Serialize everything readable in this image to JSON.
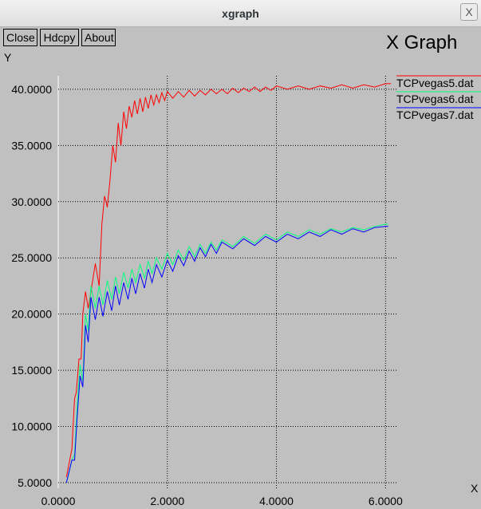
{
  "window": {
    "title": "xgraph",
    "close_glyph": "X"
  },
  "buttons": {
    "close": "Close",
    "hdcpy": "Hdcpy",
    "about": "About"
  },
  "graph_title": "X Graph",
  "y_unit": "Y",
  "x_unit": "X",
  "colors": {
    "background": "#c0c0c0",
    "grid": "#000000",
    "axis": "#ffffff"
  },
  "chart_data": {
    "type": "line",
    "title": "X Graph",
    "xlabel": "X",
    "ylabel": "Y",
    "xlim": [
      0,
      6.2
    ],
    "ylim": [
      4.5,
      41.2
    ],
    "x_ticks": [
      0,
      2,
      4,
      6
    ],
    "x_tick_labels": [
      "0.0000",
      "2.0000",
      "4.0000",
      "6.0000"
    ],
    "y_ticks": [
      5,
      10,
      15,
      20,
      25,
      30,
      35,
      40
    ],
    "y_tick_labels": [
      "5.0000",
      "10.0000",
      "15.0000",
      "20.0000",
      "25.0000",
      "30.0000",
      "35.0000",
      "40.0000"
    ],
    "grid": true,
    "legend_position": "right",
    "series": [
      {
        "name": "TCPvegas5.dat",
        "color": "#ff0000",
        "x": [
          0.15,
          0.25,
          0.3,
          0.33,
          0.38,
          0.42,
          0.45,
          0.5,
          0.55,
          0.6,
          0.68,
          0.75,
          0.8,
          0.85,
          0.9,
          0.95,
          1.0,
          1.05,
          1.1,
          1.15,
          1.2,
          1.25,
          1.3,
          1.35,
          1.4,
          1.45,
          1.5,
          1.55,
          1.6,
          1.65,
          1.7,
          1.75,
          1.8,
          1.85,
          1.9,
          1.95,
          2.0,
          2.1,
          2.2,
          2.3,
          2.4,
          2.5,
          2.6,
          2.7,
          2.8,
          2.9,
          3.0,
          3.1,
          3.2,
          3.3,
          3.4,
          3.5,
          3.6,
          3.7,
          3.8,
          3.9,
          4.0,
          4.2,
          4.4,
          4.6,
          4.8,
          5.0,
          5.2,
          5.4,
          5.6,
          5.8,
          6.0,
          6.1
        ],
        "y": [
          5.5,
          8.0,
          12.5,
          13.0,
          16.0,
          16.0,
          20.0,
          22.0,
          20.5,
          22.0,
          24.5,
          22.5,
          28.0,
          30.5,
          29.5,
          32.0,
          35.0,
          33.5,
          37.0,
          35.0,
          38.0,
          36.5,
          38.5,
          37.5,
          39.0,
          37.8,
          39.2,
          38.0,
          39.3,
          38.3,
          39.5,
          38.6,
          39.5,
          38.8,
          39.7,
          39.0,
          39.8,
          39.2,
          39.8,
          39.3,
          39.9,
          39.4,
          39.9,
          39.5,
          40.0,
          39.6,
          40.0,
          39.6,
          40.1,
          39.7,
          40.1,
          39.8,
          40.2,
          39.8,
          40.2,
          39.9,
          40.3,
          40.0,
          40.3,
          40.0,
          40.3,
          40.1,
          40.4,
          40.1,
          40.4,
          40.2,
          40.5,
          40.5
        ]
      },
      {
        "name": "TCPvegas6.dat",
        "color": "#00ff7f",
        "x": [
          0.15,
          0.25,
          0.3,
          0.35,
          0.4,
          0.45,
          0.5,
          0.55,
          0.6,
          0.68,
          0.75,
          0.82,
          0.9,
          0.98,
          1.05,
          1.12,
          1.2,
          1.28,
          1.35,
          1.42,
          1.5,
          1.58,
          1.65,
          1.72,
          1.8,
          1.9,
          2.0,
          2.1,
          2.2,
          2.3,
          2.4,
          2.5,
          2.6,
          2.7,
          2.8,
          2.9,
          3.0,
          3.2,
          3.4,
          3.6,
          3.8,
          4.0,
          4.2,
          4.4,
          4.6,
          4.8,
          5.0,
          5.2,
          5.4,
          5.6,
          5.8,
          6.0,
          6.05
        ],
        "y": [
          5.0,
          7.0,
          7.5,
          12.0,
          15.5,
          14.0,
          20.0,
          18.5,
          22.5,
          20.5,
          22.5,
          20.8,
          23.0,
          21.3,
          23.3,
          21.8,
          23.7,
          22.3,
          24.0,
          22.8,
          24.4,
          23.2,
          24.7,
          23.6,
          25.0,
          24.0,
          25.4,
          24.4,
          25.7,
          24.8,
          26.0,
          25.1,
          26.2,
          25.4,
          26.4,
          25.7,
          26.6,
          26.0,
          26.9,
          26.3,
          27.1,
          26.6,
          27.3,
          26.9,
          27.5,
          27.1,
          27.6,
          27.3,
          27.7,
          27.5,
          27.8,
          28.0,
          28.0
        ]
      },
      {
        "name": "TCPvegas7.dat",
        "color": "#0000ff",
        "x": [
          0.15,
          0.25,
          0.3,
          0.35,
          0.4,
          0.45,
          0.5,
          0.55,
          0.6,
          0.68,
          0.75,
          0.82,
          0.9,
          0.98,
          1.05,
          1.12,
          1.2,
          1.28,
          1.35,
          1.42,
          1.5,
          1.58,
          1.65,
          1.72,
          1.8,
          1.9,
          2.0,
          2.1,
          2.2,
          2.3,
          2.4,
          2.5,
          2.6,
          2.7,
          2.8,
          2.9,
          3.0,
          3.2,
          3.4,
          3.6,
          3.8,
          4.0,
          4.2,
          4.4,
          4.6,
          4.8,
          5.0,
          5.2,
          5.4,
          5.6,
          5.8,
          6.0,
          6.05
        ],
        "y": [
          5.0,
          7.0,
          7.0,
          11.0,
          14.5,
          13.5,
          19.0,
          17.5,
          21.5,
          19.5,
          21.5,
          19.8,
          22.0,
          20.3,
          22.5,
          20.8,
          22.8,
          21.3,
          23.2,
          21.8,
          23.6,
          22.3,
          24.0,
          22.8,
          24.4,
          23.3,
          24.8,
          23.8,
          25.2,
          24.3,
          25.6,
          24.7,
          25.9,
          25.1,
          26.2,
          25.4,
          26.4,
          25.8,
          26.7,
          26.1,
          26.9,
          26.4,
          27.1,
          26.7,
          27.3,
          26.9,
          27.5,
          27.1,
          27.6,
          27.3,
          27.7,
          27.8,
          27.8
        ]
      }
    ]
  }
}
